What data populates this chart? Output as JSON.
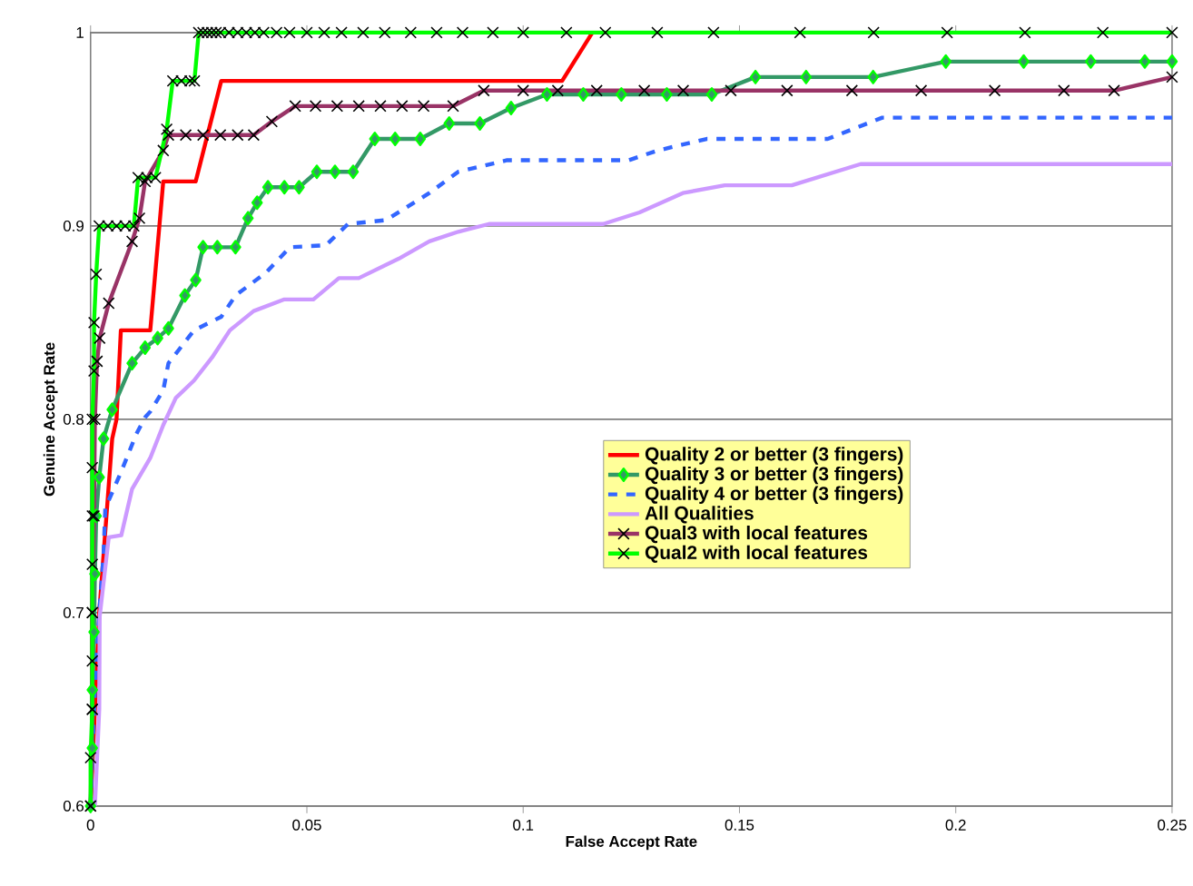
{
  "chart_data": {
    "type": "line",
    "xlabel": "False Accept Rate",
    "ylabel": "Genuine Accept Rate",
    "xlim": [
      0,
      0.25
    ],
    "ylim": [
      0.6,
      1
    ],
    "xticks": [
      0,
      0.05,
      0.1,
      0.15,
      0.2,
      0.25
    ],
    "yticks": [
      0.6,
      0.7,
      0.8,
      0.9,
      1
    ],
    "grid": "y",
    "legend": "right",
    "series": [
      {
        "name": "Quality 2 or better (3 fingers)",
        "color": "#ff0000",
        "marker": "none",
        "line_style": "solid",
        "x": [
          0,
          0.002,
          0.004,
          0.005,
          0.006,
          0.007,
          0.0138,
          0.0168,
          0.0243,
          0.0302,
          0.109,
          0.116
        ],
        "values": [
          0.6,
          0.7,
          0.76,
          0.79,
          0.8,
          0.846,
          0.846,
          0.923,
          0.923,
          0.975,
          0.975,
          1.0
        ]
      },
      {
        "name": "Quality 3 or better (3 fingers)",
        "color": "#339966",
        "marker": "diamond",
        "line_style": "solid",
        "x": [
          0,
          0.0004,
          0.0004,
          0.0008,
          0.001,
          0.0013,
          0.002,
          0.003,
          0.005,
          0.0096,
          0.0126,
          0.0155,
          0.018,
          0.0218,
          0.0243,
          0.026,
          0.0293,
          0.0335,
          0.0364,
          0.0385,
          0.041,
          0.0448,
          0.0482,
          0.0523,
          0.0565,
          0.0607,
          0.0657,
          0.0704,
          0.0762,
          0.0829,
          0.09,
          0.0972,
          0.1055,
          0.1139,
          0.1227,
          0.1332,
          0.1436,
          0.1537,
          0.1654,
          0.1809,
          0.1977,
          0.2157,
          0.2312,
          0.2437,
          0.25
        ],
        "values": [
          0.6,
          0.63,
          0.66,
          0.69,
          0.72,
          0.75,
          0.77,
          0.79,
          0.805,
          0.829,
          0.837,
          0.842,
          0.847,
          0.864,
          0.872,
          0.889,
          0.889,
          0.889,
          0.904,
          0.912,
          0.92,
          0.92,
          0.92,
          0.928,
          0.928,
          0.928,
          0.945,
          0.945,
          0.945,
          0.953,
          0.953,
          0.961,
          0.968,
          0.968,
          0.968,
          0.968,
          0.968,
          0.977,
          0.977,
          0.977,
          0.985,
          0.985,
          0.985,
          0.985,
          0.985
        ]
      },
      {
        "name": "Quality 4 or better (3 fingers)",
        "color": "#3366ff",
        "marker": "none",
        "line_style": "dashed",
        "x": [
          0,
          0.001,
          0.002,
          0.003,
          0.0034,
          0.0071,
          0.0105,
          0.0126,
          0.0138,
          0.0168,
          0.018,
          0.0239,
          0.0302,
          0.0335,
          0.0406,
          0.0461,
          0.0544,
          0.0595,
          0.0683,
          0.0783,
          0.085,
          0.0963,
          0.116,
          0.1244,
          0.1311,
          0.1424,
          0.1704,
          0.183,
          0.25
        ],
        "values": [
          0.6,
          0.66,
          0.7,
          0.73,
          0.754,
          0.773,
          0.792,
          0.801,
          0.804,
          0.815,
          0.829,
          0.846,
          0.853,
          0.864,
          0.876,
          0.889,
          0.89,
          0.901,
          0.903,
          0.917,
          0.928,
          0.934,
          0.934,
          0.934,
          0.939,
          0.945,
          0.945,
          0.956,
          0.956
        ]
      },
      {
        "name": "All Qualities",
        "color": "#cc99ff",
        "marker": "none",
        "line_style": "solid",
        "x": [
          0.001,
          0.002,
          0.0021,
          0.0042,
          0.0071,
          0.0096,
          0.0138,
          0.0168,
          0.0197,
          0.0239,
          0.0281,
          0.0322,
          0.0377,
          0.0448,
          0.0515,
          0.0574,
          0.062,
          0.0712,
          0.0783,
          0.085,
          0.0921,
          0.1185,
          0.1269,
          0.1369,
          0.1466,
          0.1621,
          0.178,
          0.25
        ],
        "values": [
          0.6,
          0.65,
          0.698,
          0.739,
          0.74,
          0.764,
          0.78,
          0.797,
          0.811,
          0.82,
          0.832,
          0.846,
          0.856,
          0.862,
          0.862,
          0.873,
          0.873,
          0.883,
          0.892,
          0.897,
          0.901,
          0.901,
          0.907,
          0.917,
          0.921,
          0.921,
          0.932,
          0.932
        ]
      },
      {
        "name": "Qual3 with local features",
        "color": "#993366",
        "marker": "cross",
        "line_style": "solid",
        "x": [
          0,
          0.0004,
          0.0004,
          0.0008,
          0.001,
          0.0015,
          0.0021,
          0.0042,
          0.0096,
          0.0113,
          0.0126,
          0.0168,
          0.018,
          0.022,
          0.026,
          0.03,
          0.034,
          0.0377,
          0.0419,
          0.0473,
          0.052,
          0.057,
          0.062,
          0.067,
          0.072,
          0.077,
          0.0838,
          0.0909,
          0.1,
          0.108,
          0.117,
          0.128,
          0.137,
          0.148,
          0.161,
          0.176,
          0.192,
          0.209,
          0.225,
          0.2366,
          0.25
        ],
        "values": [
          0.6,
          0.65,
          0.7,
          0.75,
          0.8,
          0.83,
          0.842,
          0.86,
          0.892,
          0.904,
          0.923,
          0.939,
          0.947,
          0.947,
          0.947,
          0.947,
          0.947,
          0.947,
          0.954,
          0.962,
          0.962,
          0.962,
          0.962,
          0.962,
          0.962,
          0.962,
          0.962,
          0.97,
          0.97,
          0.97,
          0.97,
          0.97,
          0.97,
          0.97,
          0.97,
          0.97,
          0.97,
          0.97,
          0.97,
          0.97,
          0.977
        ]
      },
      {
        "name": "Qual2 with local features",
        "color": "#00ff00",
        "marker": "cross",
        "line_style": "solid",
        "x": [
          0,
          0,
          0.0004,
          0.0004,
          0.0004,
          0.0004,
          0.0004,
          0.0004,
          0.0004,
          0.0008,
          0.0008,
          0.0013,
          0.002,
          0.004,
          0.006,
          0.008,
          0.01,
          0.011,
          0.013,
          0.015,
          0.0176,
          0.019,
          0.021,
          0.023,
          0.024,
          0.025,
          0.026,
          0.027,
          0.028,
          0.029,
          0.03,
          0.032,
          0.034,
          0.036,
          0.038,
          0.04,
          0.043,
          0.046,
          0.05,
          0.054,
          0.058,
          0.063,
          0.068,
          0.074,
          0.08,
          0.086,
          0.093,
          0.1,
          0.11,
          0.119,
          0.131,
          0.144,
          0.164,
          0.181,
          0.198,
          0.216,
          0.234,
          0.25
        ],
        "values": [
          0.6,
          0.625,
          0.65,
          0.675,
          0.7,
          0.725,
          0.75,
          0.775,
          0.8,
          0.825,
          0.85,
          0.875,
          0.9,
          0.9,
          0.9,
          0.9,
          0.9,
          0.925,
          0.925,
          0.925,
          0.95,
          0.975,
          0.975,
          0.975,
          0.975,
          1,
          1,
          1,
          1,
          1,
          1,
          1,
          1,
          1,
          1,
          1,
          1,
          1,
          1,
          1,
          1,
          1,
          1,
          1,
          1,
          1,
          1,
          1,
          1,
          1,
          1,
          1,
          1,
          1,
          1,
          1,
          1,
          1
        ]
      }
    ]
  }
}
